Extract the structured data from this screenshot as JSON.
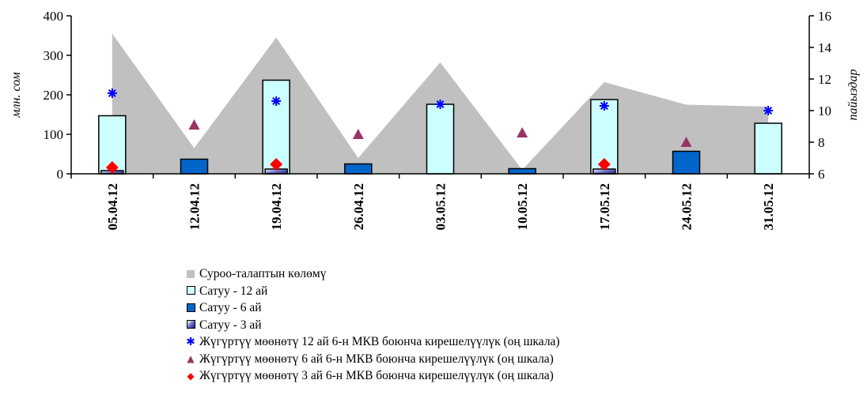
{
  "chart_data": {
    "type": "bar",
    "categories": [
      "05.04.12",
      "12.04.12",
      "19.04.12",
      "26.04.12",
      "03.05.12",
      "10.05.12",
      "17.05.12",
      "24.05.12",
      "31.05.12"
    ],
    "ylabel": "млн. сом",
    "y2label": "пайыздар",
    "ylim": [
      0,
      400
    ],
    "y2lim": [
      6,
      16
    ],
    "yticks": [
      0,
      100,
      200,
      300,
      400
    ],
    "y2ticks": [
      6,
      8,
      10,
      12,
      14,
      16
    ],
    "legend_position": "bottom",
    "series": [
      {
        "name": "Суроо-талаптын көлөмү",
        "type": "area",
        "axis": "left",
        "color": "#c0c0c0",
        "values": [
          355,
          65,
          345,
          40,
          282,
          10,
          232,
          175,
          170
        ]
      },
      {
        "name": "Сатуу - 12 ай",
        "type": "bar",
        "axis": "left",
        "color": "#ccffff",
        "values": [
          147,
          null,
          237,
          null,
          176,
          null,
          188,
          null,
          128
        ]
      },
      {
        "name": "Сатуу - 6 ай",
        "type": "bar",
        "axis": "left",
        "color": "#0066cc",
        "values": [
          null,
          37,
          null,
          25,
          null,
          13,
          null,
          57,
          null
        ]
      },
      {
        "name": "Сатуу - 3 ай",
        "type": "bar",
        "axis": "left",
        "color": "#6666cc",
        "values": [
          8,
          null,
          12,
          null,
          null,
          null,
          12,
          null,
          null
        ]
      },
      {
        "name": "Жүгүртүү мөөнөтү 12 ай 6-н МКВ боюнча кирешелүүлүк (оң шкала)",
        "type": "scatter",
        "axis": "right",
        "marker": "star",
        "color": "#0000ff",
        "values": [
          11.1,
          null,
          10.6,
          null,
          10.4,
          null,
          10.3,
          null,
          10.0
        ]
      },
      {
        "name": "Жүгүртүү мөөнөтү 6 ай 6-н МКВ боюнча кирешелүүлүк (оң шкала)",
        "type": "scatter",
        "axis": "right",
        "marker": "triangle",
        "color": "#993366",
        "values": [
          null,
          9.1,
          null,
          8.5,
          null,
          8.6,
          null,
          8.0,
          null
        ]
      },
      {
        "name": "Жүгүртүү мөөнөтү 3 ай 6-н МКВ боюнча кирешелүүлүк (оң шкала)",
        "type": "scatter",
        "axis": "right",
        "marker": "diamond",
        "color": "#ff0000",
        "values": [
          6.4,
          null,
          6.6,
          null,
          null,
          null,
          6.6,
          null,
          null
        ]
      }
    ]
  }
}
